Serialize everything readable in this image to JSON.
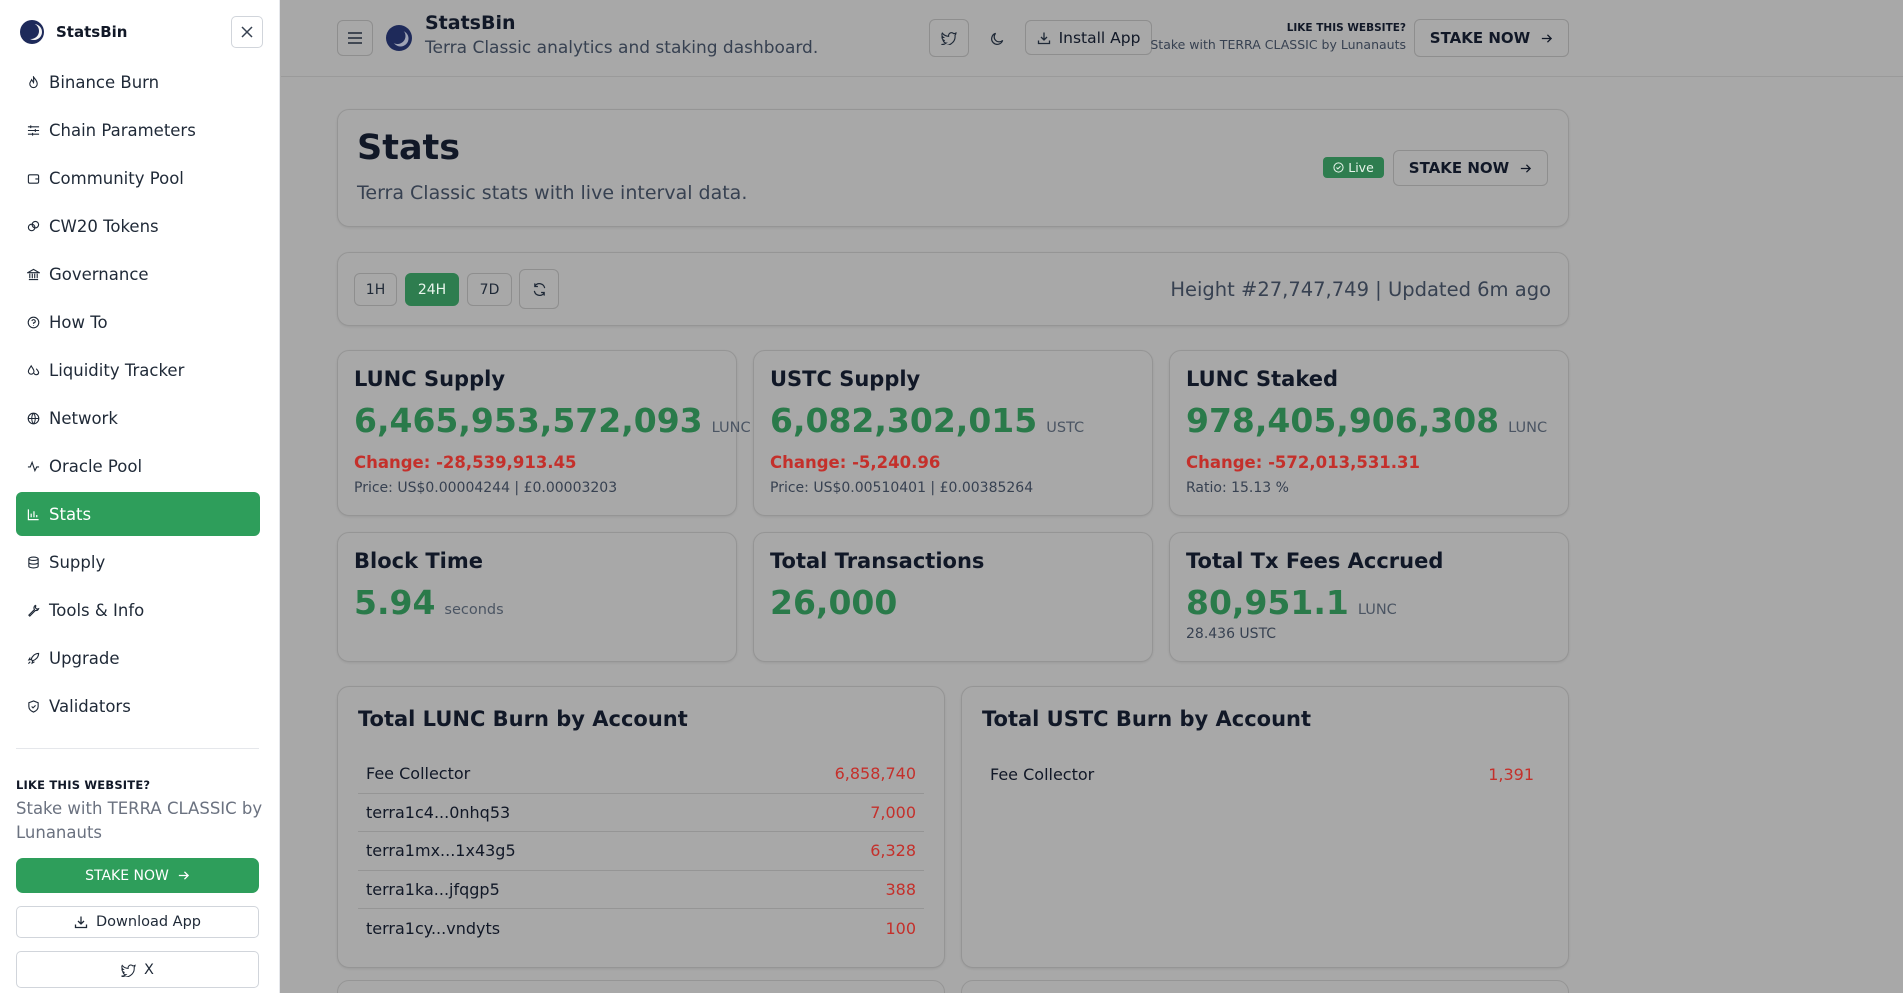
{
  "sidebar": {
    "brand": "StatsBin",
    "items": [
      {
        "label": "Binance Burn",
        "icon": "flame-icon",
        "active": false
      },
      {
        "label": "Chain Parameters",
        "icon": "sliders-icon",
        "active": false
      },
      {
        "label": "Community Pool",
        "icon": "wallet-icon",
        "active": false
      },
      {
        "label": "CW20 Tokens",
        "icon": "coins-icon",
        "active": false
      },
      {
        "label": "Governance",
        "icon": "landmark-icon",
        "active": false
      },
      {
        "label": "How To",
        "icon": "help-circle-icon",
        "active": false
      },
      {
        "label": "Liquidity Tracker",
        "icon": "droplets-icon",
        "active": false
      },
      {
        "label": "Network",
        "icon": "globe-icon",
        "active": false
      },
      {
        "label": "Oracle Pool",
        "icon": "activity-icon",
        "active": false
      },
      {
        "label": "Stats",
        "icon": "bar-chart-icon",
        "active": true
      },
      {
        "label": "Supply",
        "icon": "database-icon",
        "active": false
      },
      {
        "label": "Tools & Info",
        "icon": "wrench-icon",
        "active": false
      },
      {
        "label": "Upgrade",
        "icon": "rocket-icon",
        "active": false
      },
      {
        "label": "Validators",
        "icon": "shield-icon",
        "active": false
      }
    ],
    "like_label": "LIKE THIS WEBSITE?",
    "stake_text": "Stake with TERRA CLASSIC by Lunanauts",
    "stake_button": "STAKE NOW",
    "download_button": "Download App",
    "x_button": "X"
  },
  "header": {
    "title": "StatsBin",
    "subtitle": "Terra Classic analytics and staking dashboard.",
    "install_button": "Install App",
    "like_label": "LIKE THIS WEBSITE?",
    "like_sub": "Stake with TERRA CLASSIC by Lunanauts",
    "stake_button": "STAKE NOW"
  },
  "stats": {
    "title": "Stats",
    "subtitle": "Terra Classic stats with live interval data.",
    "live_badge": "Live",
    "stake_button": "STAKE NOW"
  },
  "filters": {
    "ranges": [
      "1H",
      "24H",
      "7D"
    ],
    "active_range": "24H",
    "height_text": "Height #27,747,749 | Updated 6m ago"
  },
  "metrics": {
    "lunc_supply": {
      "title": "LUNC Supply",
      "value": "6,465,953,572,093",
      "unit": "LUNC",
      "change": "Change: -28,539,913.45",
      "sub": "Price: US$0.00004244 | £0.00003203"
    },
    "ustc_supply": {
      "title": "USTC Supply",
      "value": "6,082,302,015",
      "unit": "USTC",
      "change": "Change: -5,240.96",
      "sub": "Price: US$0.00510401 | £0.00385264"
    },
    "lunc_staked": {
      "title": "LUNC Staked",
      "value": "978,405,906,308",
      "unit": "LUNC",
      "change": "Change: -572,013,531.31",
      "sub": "Ratio: 15.13 %"
    },
    "block_time": {
      "title": "Block Time",
      "value": "5.94",
      "unit": "seconds"
    },
    "total_tx": {
      "title": "Total Transactions",
      "value": "26,000"
    },
    "tx_fees": {
      "title": "Total Tx Fees Accrued",
      "value": "80,951.1",
      "unit": "LUNC",
      "sub": "28.436 USTC"
    }
  },
  "lunc_burn": {
    "title": "Total LUNC Burn by Account",
    "rows": [
      {
        "account": "Fee Collector",
        "amount": "6,858,740"
      },
      {
        "account": "terra1c4...0nhq53",
        "amount": "7,000"
      },
      {
        "account": "terra1mx...1x43g5",
        "amount": "6,328"
      },
      {
        "account": "terra1ka...jfqgp5",
        "amount": "388"
      },
      {
        "account": "terra1cy...vndyts",
        "amount": "100"
      }
    ]
  },
  "ustc_burn": {
    "title": "Total USTC Burn by Account",
    "rows": [
      {
        "account": "Fee Collector",
        "amount": "1,391"
      }
    ]
  },
  "colors": {
    "accent": "#2e9e5b",
    "value_green": "#2a7a4a",
    "negative_red": "#c4302b",
    "overlay": "#a8a8a8"
  }
}
